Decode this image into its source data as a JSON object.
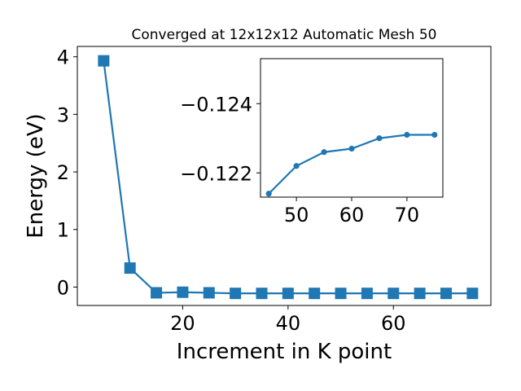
{
  "chart_data": [
    {
      "type": "line",
      "title": "Converged at 12x12x12 Automatic Mesh 50",
      "xlabel": "Increment in K point",
      "ylabel": "Energy (eV)",
      "xlim": [
        0,
        78.5
      ],
      "ylim": [
        -0.32,
        4.18
      ],
      "xticks": [
        20,
        40,
        60
      ],
      "yticks": [
        0,
        1,
        2,
        3,
        4
      ],
      "xtick_labels": [
        "20",
        "40",
        "60"
      ],
      "ytick_labels": [
        "0",
        "1",
        "2",
        "3",
        "4"
      ],
      "grid": false,
      "series": [
        {
          "marker": "square",
          "color": "#1f77b4",
          "x": [
            5,
            10,
            15,
            20,
            25,
            30,
            35,
            40,
            45,
            50,
            55,
            60,
            65,
            70,
            75
          ],
          "y": [
            3.93,
            0.33,
            -0.1,
            -0.09,
            -0.1,
            -0.11,
            -0.11,
            -0.11,
            -0.11,
            -0.11,
            -0.11,
            -0.11,
            -0.11,
            -0.11,
            -0.11
          ]
        }
      ]
    },
    {
      "type": "line",
      "title": "",
      "xlabel": "",
      "ylabel": "",
      "inset": true,
      "xlim": [
        43.5,
        76.5
      ],
      "ylim": [
        -0.1213,
        -0.1253
      ],
      "xticks": [
        50,
        60,
        70
      ],
      "yticks": [
        -0.124,
        -0.122
      ],
      "xtick_labels": [
        "50",
        "60",
        "70"
      ],
      "ytick_labels": [
        "−0.124",
        "−0.122"
      ],
      "grid": false,
      "series": [
        {
          "marker": "circle",
          "color": "#1f77b4",
          "x": [
            45,
            50,
            55,
            60,
            65,
            70,
            75
          ],
          "y": [
            -0.1214,
            -0.1222,
            -0.1226,
            -0.1227,
            -0.123,
            -0.1231,
            -0.1231
          ]
        }
      ]
    }
  ]
}
